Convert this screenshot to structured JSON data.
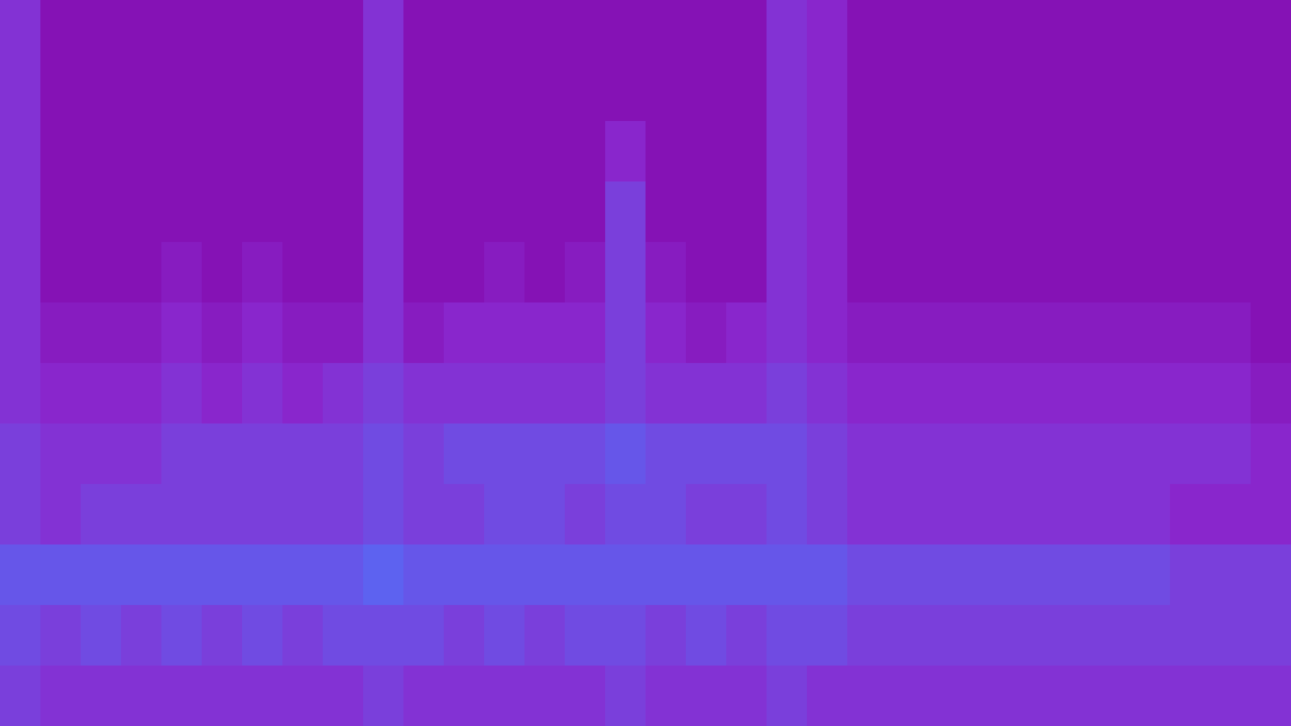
{
  "chart_data": {
    "type": "spectrogram",
    "tick_labels": false,
    "cells": [
      [
        3,
        0,
        0,
        0,
        0,
        0,
        0,
        0,
        0,
        3,
        0,
        0,
        0,
        0,
        0,
        0,
        0,
        0,
        0,
        3,
        2,
        0,
        0,
        0,
        0,
        0,
        0,
        0,
        0,
        0,
        0,
        0
      ],
      [
        3,
        0,
        0,
        0,
        0,
        0,
        0,
        0,
        0,
        3,
        0,
        0,
        0,
        0,
        0,
        0,
        0,
        0,
        0,
        3,
        2,
        0,
        0,
        0,
        0,
        0,
        0,
        0,
        0,
        0,
        0,
        0
      ],
      [
        3,
        0,
        0,
        0,
        0,
        0,
        0,
        0,
        0,
        3,
        0,
        0,
        0,
        0,
        0,
        2,
        0,
        0,
        0,
        3,
        2,
        0,
        0,
        0,
        0,
        0,
        0,
        0,
        0,
        0,
        0,
        0
      ],
      [
        3,
        0,
        0,
        0,
        0,
        0,
        0,
        0,
        0,
        3,
        0,
        0,
        0,
        0,
        0,
        4,
        0,
        0,
        0,
        3,
        2,
        0,
        0,
        0,
        0,
        0,
        0,
        0,
        0,
        0,
        0,
        0
      ],
      [
        3,
        0,
        0,
        0,
        1,
        0,
        1,
        0,
        0,
        3,
        0,
        0,
        1,
        0,
        1,
        4,
        1,
        0,
        0,
        3,
        2,
        0,
        0,
        0,
        0,
        0,
        0,
        0,
        0,
        0,
        0,
        0
      ],
      [
        3,
        1,
        1,
        1,
        2,
        1,
        2,
        1,
        1,
        3,
        1,
        2,
        2,
        2,
        2,
        4,
        2,
        1,
        2,
        3,
        2,
        1,
        1,
        1,
        1,
        1,
        1,
        1,
        1,
        1,
        1,
        0
      ],
      [
        3,
        2,
        2,
        2,
        3,
        2,
        3,
        2,
        3,
        4,
        3,
        3,
        3,
        3,
        3,
        4,
        3,
        3,
        3,
        4,
        3,
        2,
        2,
        2,
        2,
        2,
        2,
        2,
        2,
        2,
        2,
        1
      ],
      [
        4,
        3,
        3,
        3,
        4,
        4,
        4,
        4,
        4,
        5,
        4,
        5,
        5,
        5,
        5,
        6,
        5,
        5,
        5,
        5,
        4,
        3,
        3,
        3,
        3,
        3,
        3,
        3,
        3,
        3,
        3,
        2
      ],
      [
        4,
        3,
        4,
        4,
        4,
        4,
        4,
        4,
        4,
        5,
        4,
        4,
        5,
        5,
        4,
        5,
        5,
        4,
        4,
        5,
        4,
        3,
        3,
        3,
        3,
        3,
        3,
        3,
        3,
        2,
        2,
        2
      ],
      [
        6,
        6,
        6,
        6,
        6,
        6,
        6,
        6,
        6,
        7,
        6,
        6,
        6,
        6,
        6,
        6,
        6,
        6,
        6,
        6,
        6,
        5,
        5,
        5,
        5,
        5,
        5,
        5,
        5,
        4,
        4,
        4
      ],
      [
        5,
        4,
        5,
        4,
        5,
        4,
        5,
        4,
        5,
        5,
        5,
        4,
        5,
        4,
        5,
        5,
        4,
        5,
        4,
        5,
        5,
        4,
        4,
        4,
        4,
        4,
        4,
        4,
        4,
        4,
        4,
        4
      ],
      [
        4,
        3,
        3,
        3,
        3,
        3,
        3,
        3,
        3,
        4,
        3,
        3,
        3,
        3,
        3,
        4,
        3,
        3,
        3,
        4,
        3,
        3,
        3,
        3,
        3,
        3,
        3,
        3,
        3,
        3,
        3,
        3
      ]
    ]
  }
}
